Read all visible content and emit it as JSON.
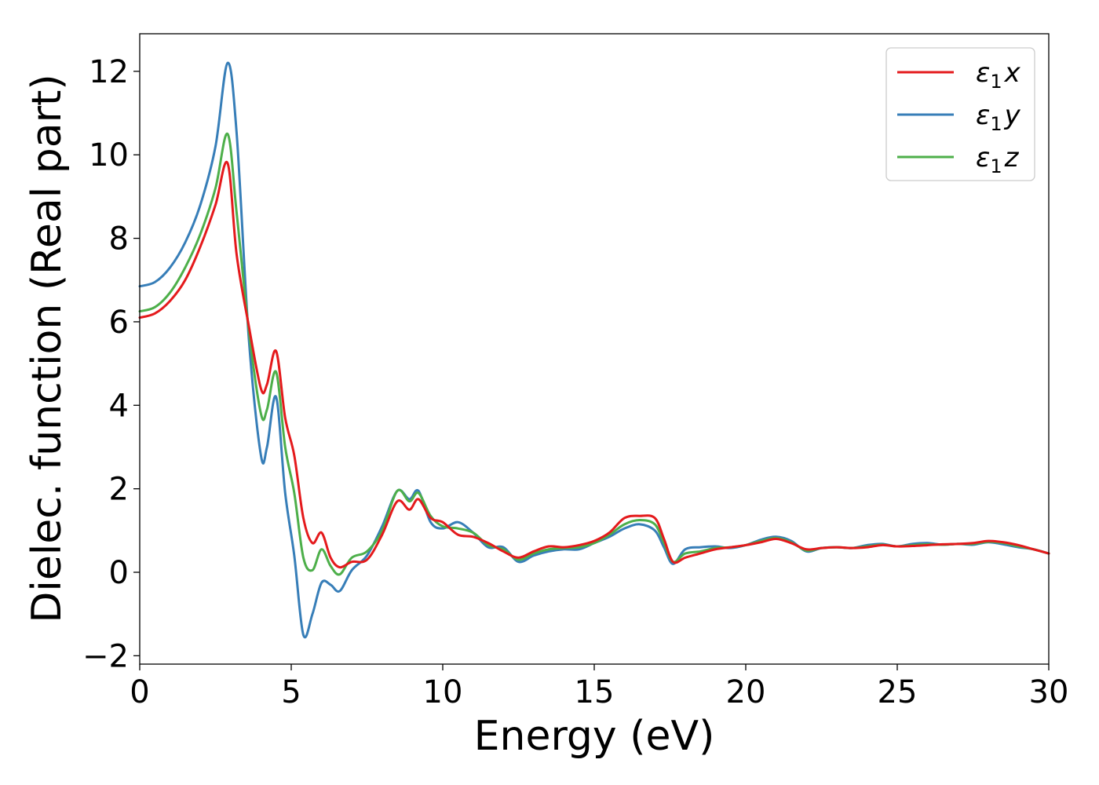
{
  "chart_data": {
    "type": "line",
    "title": "",
    "xlabel": "Energy (eV)",
    "ylabel": "Dielec. function (Real part)",
    "xlim": [
      0,
      30
    ],
    "ylim": [
      -2.2,
      12.9
    ],
    "xticks": [
      0,
      5,
      10,
      15,
      20,
      25,
      30
    ],
    "yticks": [
      -2,
      0,
      2,
      4,
      6,
      8,
      10,
      12
    ],
    "ytick_labels": [
      "−2",
      "0",
      "2",
      "4",
      "6",
      "8",
      "10",
      "12"
    ],
    "grid": false,
    "legend_position": "top-right",
    "series": [
      {
        "name": "ε₁x",
        "legend_base": "ε",
        "legend_sub": "1",
        "legend_var": "x",
        "color": "#e41a1c",
        "x": [
          0,
          0.5,
          1,
          1.5,
          2,
          2.5,
          2.9,
          3.2,
          3.6,
          4,
          4.2,
          4.5,
          4.8,
          5.1,
          5.4,
          5.7,
          6.0,
          6.3,
          6.6,
          7.0,
          7.5,
          8.0,
          8.5,
          8.9,
          9.2,
          9.6,
          10.0,
          10.5,
          11.0,
          11.5,
          12.0,
          12.5,
          13.0,
          13.5,
          14.0,
          14.5,
          15.0,
          15.5,
          16.0,
          16.5,
          17.0,
          17.3,
          17.6,
          18.0,
          18.5,
          19.0,
          19.5,
          20.0,
          20.5,
          21.0,
          21.5,
          22.0,
          22.5,
          23.0,
          23.5,
          24.0,
          24.5,
          25.0,
          25.5,
          26.0,
          26.5,
          27.0,
          27.5,
          28.0,
          28.5,
          29.0,
          29.5,
          30.0
        ],
        "y": [
          6.1,
          6.2,
          6.5,
          7.0,
          7.8,
          8.8,
          9.8,
          7.6,
          5.9,
          4.4,
          4.5,
          5.3,
          3.7,
          2.8,
          1.3,
          0.7,
          0.95,
          0.35,
          0.12,
          0.25,
          0.3,
          0.9,
          1.7,
          1.5,
          1.75,
          1.3,
          1.2,
          0.9,
          0.85,
          0.7,
          0.5,
          0.35,
          0.5,
          0.62,
          0.6,
          0.65,
          0.75,
          0.95,
          1.3,
          1.35,
          1.3,
          0.8,
          0.25,
          0.35,
          0.45,
          0.55,
          0.6,
          0.65,
          0.72,
          0.8,
          0.7,
          0.55,
          0.58,
          0.6,
          0.58,
          0.6,
          0.65,
          0.62,
          0.63,
          0.65,
          0.67,
          0.68,
          0.7,
          0.75,
          0.72,
          0.65,
          0.55,
          0.45
        ]
      },
      {
        "name": "ε₁y",
        "legend_base": "ε",
        "legend_sub": "1",
        "legend_var": "y",
        "color": "#377eb8",
        "x": [
          0,
          0.5,
          1,
          1.5,
          2,
          2.5,
          2.9,
          3.2,
          3.6,
          4,
          4.2,
          4.5,
          4.8,
          5.1,
          5.4,
          5.7,
          6.0,
          6.3,
          6.6,
          7.0,
          7.5,
          8.0,
          8.5,
          8.9,
          9.2,
          9.6,
          10.0,
          10.5,
          11.0,
          11.5,
          12.0,
          12.5,
          13.0,
          13.5,
          14.0,
          14.5,
          15.0,
          15.5,
          16.0,
          16.5,
          17.0,
          17.3,
          17.6,
          18.0,
          18.5,
          19.0,
          19.5,
          20.0,
          20.5,
          21.0,
          21.5,
          22.0,
          22.5,
          23.0,
          23.5,
          24.0,
          24.5,
          25.0,
          25.5,
          26.0,
          26.5,
          27.0,
          27.5,
          28.0,
          28.5,
          29.0,
          29.5,
          30.0
        ],
        "y": [
          6.85,
          6.95,
          7.3,
          7.9,
          8.8,
          10.2,
          12.2,
          10.5,
          5.6,
          2.8,
          3.0,
          4.2,
          1.9,
          0.4,
          -1.5,
          -1.0,
          -0.25,
          -0.3,
          -0.45,
          0.05,
          0.4,
          1.1,
          1.95,
          1.75,
          1.95,
          1.2,
          1.05,
          1.2,
          0.95,
          0.6,
          0.6,
          0.25,
          0.4,
          0.5,
          0.55,
          0.55,
          0.7,
          0.85,
          1.05,
          1.15,
          1.0,
          0.6,
          0.2,
          0.55,
          0.6,
          0.62,
          0.58,
          0.65,
          0.78,
          0.85,
          0.75,
          0.5,
          0.58,
          0.6,
          0.58,
          0.65,
          0.68,
          0.62,
          0.68,
          0.7,
          0.66,
          0.68,
          0.66,
          0.72,
          0.67,
          0.6,
          0.55,
          0.45
        ]
      },
      {
        "name": "ε₁z",
        "legend_base": "ε",
        "legend_sub": "1",
        "legend_var": "z",
        "color": "#4daf4a",
        "x": [
          0,
          0.5,
          1,
          1.5,
          2,
          2.5,
          2.9,
          3.2,
          3.6,
          4,
          4.2,
          4.5,
          4.8,
          5.1,
          5.4,
          5.7,
          6.0,
          6.3,
          6.6,
          7.0,
          7.5,
          8.0,
          8.5,
          8.9,
          9.2,
          9.6,
          10.0,
          10.5,
          11.0,
          11.5,
          12.0,
          12.5,
          13.0,
          13.5,
          14.0,
          14.5,
          15.0,
          15.5,
          16.0,
          16.5,
          17.0,
          17.3,
          17.6,
          18.0,
          18.5,
          19.0,
          19.5,
          20.0,
          20.5,
          21.0,
          21.5,
          22.0,
          22.5,
          23.0,
          23.5,
          24.0,
          24.5,
          25.0,
          25.5,
          26.0,
          26.5,
          27.0,
          27.5,
          28.0,
          28.5,
          29.0,
          29.5,
          30.0
        ],
        "y": [
          6.25,
          6.35,
          6.7,
          7.3,
          8.1,
          9.2,
          10.5,
          8.6,
          5.8,
          3.8,
          3.9,
          4.8,
          3.0,
          1.9,
          0.35,
          0.05,
          0.55,
          0.15,
          -0.05,
          0.35,
          0.5,
          1.0,
          1.95,
          1.7,
          1.9,
          1.35,
          1.1,
          1.05,
          0.95,
          0.65,
          0.55,
          0.3,
          0.45,
          0.55,
          0.58,
          0.6,
          0.7,
          0.9,
          1.15,
          1.25,
          1.15,
          0.7,
          0.25,
          0.45,
          0.5,
          0.58,
          0.6,
          0.65,
          0.75,
          0.82,
          0.72,
          0.52,
          0.58,
          0.6,
          0.58,
          0.62,
          0.66,
          0.62,
          0.65,
          0.67,
          0.66,
          0.68,
          0.68,
          0.73,
          0.7,
          0.62,
          0.55,
          0.45
        ]
      }
    ]
  }
}
